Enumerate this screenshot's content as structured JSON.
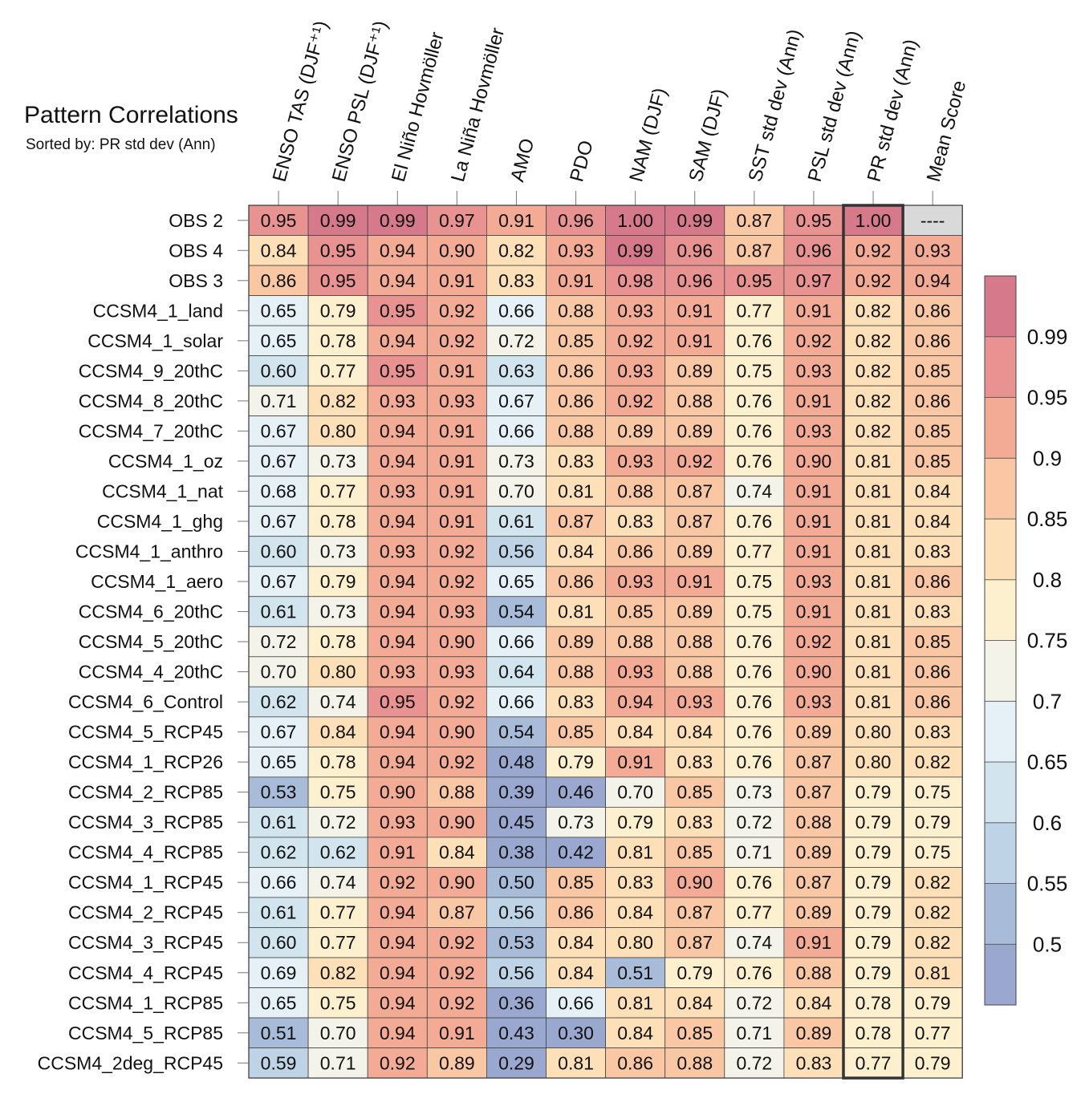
{
  "chart_data": {
    "type": "heatmap",
    "title": "Pattern Correlations",
    "subtitle": "Sorted by: PR std dev (Ann)",
    "highlight_column": 10,
    "columns": [
      "ENSO TAS (DJF⁺¹)",
      "ENSO PSL (DJF⁺¹)",
      "El Niño Hovmöller",
      "La Niña Hovmöller",
      "AMO",
      "PDO",
      "NAM (DJF)",
      "SAM (DJF)",
      "SST std dev (Ann)",
      "PSL std dev (Ann)",
      "PR std dev (Ann)",
      "Mean Score"
    ],
    "rows": [
      "OBS 2",
      "OBS 4",
      "OBS 3",
      "CCSM4_1_land",
      "CCSM4_1_solar",
      "CCSM4_9_20thC",
      "CCSM4_8_20thC",
      "CCSM4_7_20thC",
      "CCSM4_1_oz",
      "CCSM4_1_nat",
      "CCSM4_1_ghg",
      "CCSM4_1_anthro",
      "CCSM4_1_aero",
      "CCSM4_6_20thC",
      "CCSM4_5_20thC",
      "CCSM4_4_20thC",
      "CCSM4_6_Control",
      "CCSM4_5_RCP45",
      "CCSM4_1_RCP26",
      "CCSM4_2_RCP85",
      "CCSM4_3_RCP85",
      "CCSM4_4_RCP85",
      "CCSM4_1_RCP45",
      "CCSM4_2_RCP45",
      "CCSM4_3_RCP45",
      "CCSM4_4_RCP45",
      "CCSM4_1_RCP85",
      "CCSM4_5_RCP85",
      "CCSM4_2deg_RCP45"
    ],
    "values": [
      [
        "0.95",
        "0.99",
        "0.99",
        "0.97",
        "0.91",
        "0.96",
        "1.00",
        "0.99",
        "0.87",
        "0.95",
        "1.00",
        "----"
      ],
      [
        "0.84",
        "0.95",
        "0.94",
        "0.90",
        "0.82",
        "0.93",
        "0.99",
        "0.96",
        "0.87",
        "0.96",
        "0.92",
        "0.93"
      ],
      [
        "0.86",
        "0.95",
        "0.94",
        "0.91",
        "0.83",
        "0.91",
        "0.98",
        "0.96",
        "0.95",
        "0.97",
        "0.92",
        "0.94"
      ],
      [
        "0.65",
        "0.79",
        "0.95",
        "0.92",
        "0.66",
        "0.88",
        "0.93",
        "0.91",
        "0.77",
        "0.91",
        "0.82",
        "0.86"
      ],
      [
        "0.65",
        "0.78",
        "0.94",
        "0.92",
        "0.72",
        "0.85",
        "0.92",
        "0.91",
        "0.76",
        "0.92",
        "0.82",
        "0.86"
      ],
      [
        "0.60",
        "0.77",
        "0.95",
        "0.91",
        "0.63",
        "0.86",
        "0.93",
        "0.89",
        "0.75",
        "0.93",
        "0.82",
        "0.85"
      ],
      [
        "0.71",
        "0.82",
        "0.93",
        "0.93",
        "0.67",
        "0.86",
        "0.92",
        "0.88",
        "0.76",
        "0.91",
        "0.82",
        "0.86"
      ],
      [
        "0.67",
        "0.80",
        "0.94",
        "0.91",
        "0.66",
        "0.88",
        "0.89",
        "0.89",
        "0.76",
        "0.93",
        "0.82",
        "0.85"
      ],
      [
        "0.67",
        "0.73",
        "0.94",
        "0.91",
        "0.73",
        "0.83",
        "0.93",
        "0.92",
        "0.76",
        "0.90",
        "0.81",
        "0.85"
      ],
      [
        "0.68",
        "0.77",
        "0.93",
        "0.91",
        "0.70",
        "0.81",
        "0.88",
        "0.87",
        "0.74",
        "0.91",
        "0.81",
        "0.84"
      ],
      [
        "0.67",
        "0.78",
        "0.94",
        "0.91",
        "0.61",
        "0.87",
        "0.83",
        "0.87",
        "0.76",
        "0.91",
        "0.81",
        "0.84"
      ],
      [
        "0.60",
        "0.73",
        "0.93",
        "0.92",
        "0.56",
        "0.84",
        "0.86",
        "0.89",
        "0.77",
        "0.91",
        "0.81",
        "0.83"
      ],
      [
        "0.67",
        "0.79",
        "0.94",
        "0.92",
        "0.65",
        "0.86",
        "0.93",
        "0.91",
        "0.75",
        "0.93",
        "0.81",
        "0.86"
      ],
      [
        "0.61",
        "0.73",
        "0.94",
        "0.93",
        "0.54",
        "0.81",
        "0.85",
        "0.89",
        "0.75",
        "0.91",
        "0.81",
        "0.83"
      ],
      [
        "0.72",
        "0.78",
        "0.94",
        "0.90",
        "0.66",
        "0.89",
        "0.88",
        "0.88",
        "0.76",
        "0.92",
        "0.81",
        "0.85"
      ],
      [
        "0.70",
        "0.80",
        "0.93",
        "0.93",
        "0.64",
        "0.88",
        "0.93",
        "0.88",
        "0.76",
        "0.90",
        "0.81",
        "0.86"
      ],
      [
        "0.62",
        "0.74",
        "0.95",
        "0.92",
        "0.66",
        "0.83",
        "0.94",
        "0.93",
        "0.76",
        "0.93",
        "0.81",
        "0.86"
      ],
      [
        "0.67",
        "0.84",
        "0.94",
        "0.90",
        "0.54",
        "0.85",
        "0.84",
        "0.84",
        "0.76",
        "0.89",
        "0.80",
        "0.83"
      ],
      [
        "0.65",
        "0.78",
        "0.94",
        "0.92",
        "0.48",
        "0.79",
        "0.91",
        "0.83",
        "0.76",
        "0.87",
        "0.80",
        "0.82"
      ],
      [
        "0.53",
        "0.75",
        "0.90",
        "0.88",
        "0.39",
        "0.46",
        "0.70",
        "0.85",
        "0.73",
        "0.87",
        "0.79",
        "0.75"
      ],
      [
        "0.61",
        "0.72",
        "0.93",
        "0.90",
        "0.45",
        "0.73",
        "0.79",
        "0.83",
        "0.72",
        "0.88",
        "0.79",
        "0.79"
      ],
      [
        "0.62",
        "0.62",
        "0.91",
        "0.84",
        "0.38",
        "0.42",
        "0.81",
        "0.85",
        "0.71",
        "0.89",
        "0.79",
        "0.75"
      ],
      [
        "0.66",
        "0.74",
        "0.92",
        "0.90",
        "0.50",
        "0.85",
        "0.83",
        "0.90",
        "0.76",
        "0.87",
        "0.79",
        "0.82"
      ],
      [
        "0.61",
        "0.77",
        "0.94",
        "0.87",
        "0.56",
        "0.86",
        "0.84",
        "0.87",
        "0.77",
        "0.89",
        "0.79",
        "0.82"
      ],
      [
        "0.60",
        "0.77",
        "0.94",
        "0.92",
        "0.53",
        "0.84",
        "0.80",
        "0.87",
        "0.74",
        "0.91",
        "0.79",
        "0.82"
      ],
      [
        "0.69",
        "0.82",
        "0.94",
        "0.92",
        "0.56",
        "0.84",
        "0.51",
        "0.79",
        "0.76",
        "0.88",
        "0.79",
        "0.81"
      ],
      [
        "0.65",
        "0.75",
        "0.94",
        "0.92",
        "0.36",
        "0.66",
        "0.81",
        "0.84",
        "0.72",
        "0.84",
        "0.78",
        "0.79"
      ],
      [
        "0.51",
        "0.70",
        "0.94",
        "0.91",
        "0.43",
        "0.30",
        "0.84",
        "0.85",
        "0.71",
        "0.89",
        "0.78",
        "0.77"
      ],
      [
        "0.59",
        "0.71",
        "0.92",
        "0.89",
        "0.29",
        "0.81",
        "0.86",
        "0.88",
        "0.72",
        "0.83",
        "0.77",
        "0.79"
      ]
    ],
    "colorbar": {
      "tick_labels": [
        "0.99",
        "0.95",
        "0.9",
        "0.85",
        "0.8",
        "0.75",
        "0.7",
        "0.65",
        "0.6",
        "0.55",
        "0.5"
      ],
      "thresholds": [
        0.5,
        0.55,
        0.6,
        0.65,
        0.7,
        0.75,
        0.8,
        0.85,
        0.9,
        0.95,
        0.99
      ],
      "colors": [
        "#9aa8cf",
        "#a8bcd9",
        "#bed3e5",
        "#d2e4ee",
        "#e5f1f6",
        "#f4f3ea",
        "#fdf0cf",
        "#fde0b8",
        "#f9c7a3",
        "#f4ab95",
        "#e99292",
        "#d67a8b"
      ],
      "missing_color": "#d9d9d9"
    }
  }
}
